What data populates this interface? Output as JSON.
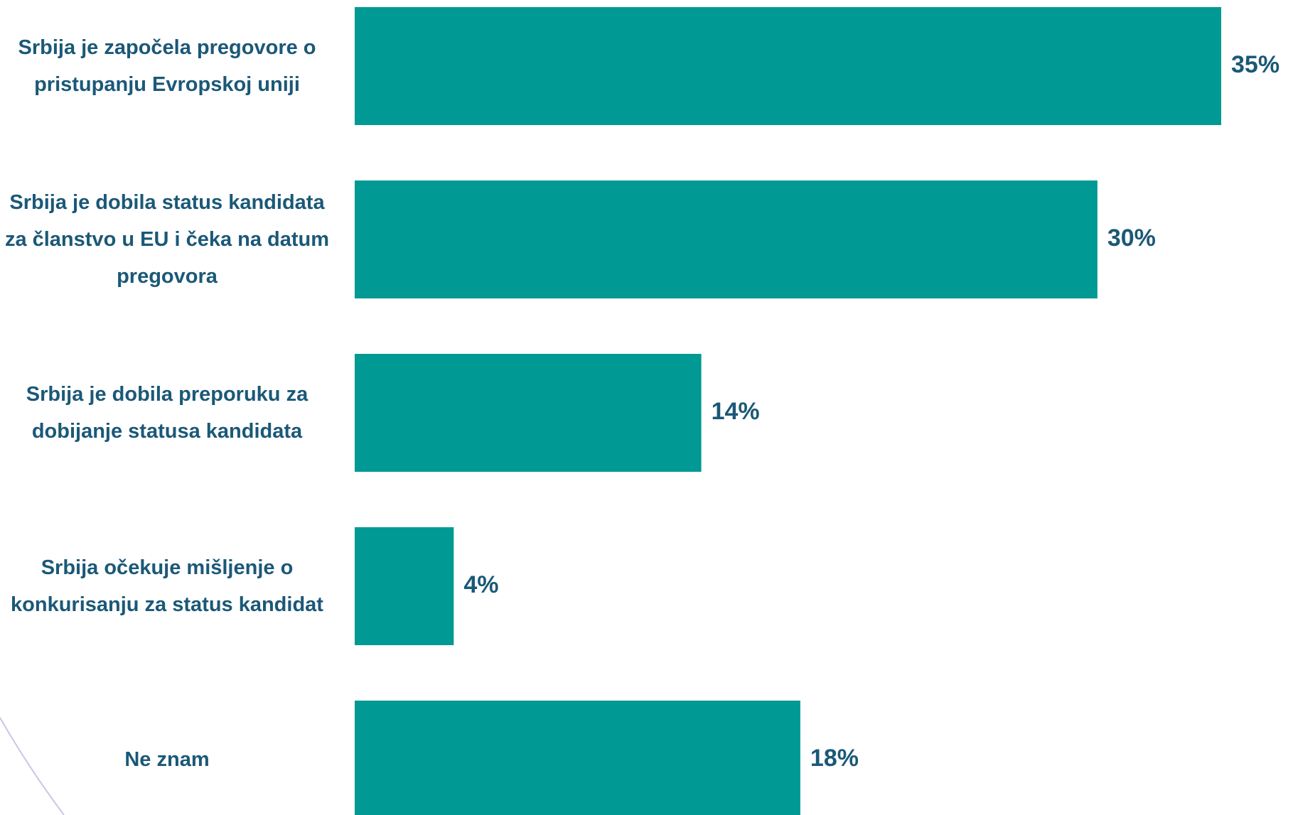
{
  "chart_data": {
    "type": "bar",
    "orientation": "horizontal",
    "categories": [
      "Srbija je započela pregovore o pristupanju Evropskoj uniji",
      "Srbija je dobila status kandidata za članstvo u EU i čeka na datum pregovora",
      "Srbija je dobila preporuku za dobijanje statusa kandidata",
      "Srbija očekuje mišljenje o konkurisanju za status kandidat",
      "Ne znam"
    ],
    "values": [
      35,
      30,
      14,
      4,
      18
    ],
    "value_labels": [
      "35%",
      "30%",
      "14%",
      "4%",
      "18%"
    ],
    "color": "#009994"
  }
}
